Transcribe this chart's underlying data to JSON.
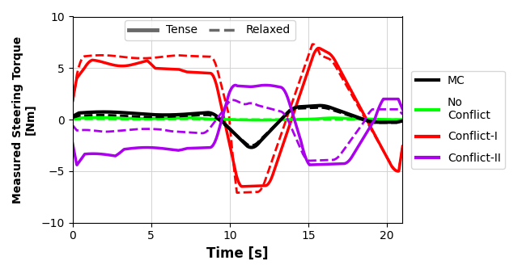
{
  "xlabel": "Time [s]",
  "ylabel": "Measured Steering Torque\n[Nm]",
  "xlim": [
    0,
    21
  ],
  "ylim": [
    -10,
    10
  ],
  "xticks": [
    0,
    5,
    10,
    15,
    20
  ],
  "yticks": [
    -10,
    -5,
    0,
    5,
    10
  ],
  "colors": {
    "MC": "#000000",
    "NoConflict": "#00ff00",
    "ConflictI": "#ff0000",
    "ConflictII": "#aa00ee"
  },
  "lw_tense": 2.5,
  "lw_relaxed": 2.0
}
